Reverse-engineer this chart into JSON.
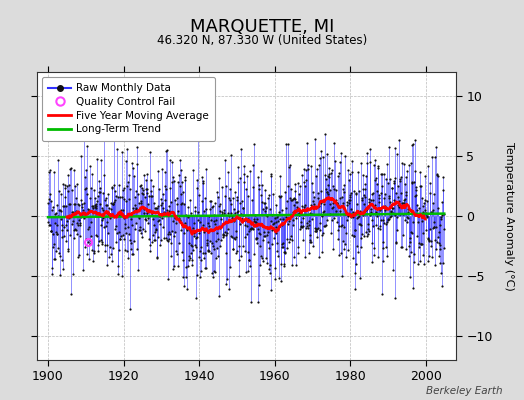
{
  "title": "MARQUETTE, MI",
  "subtitle": "46.320 N, 87.330 W (United States)",
  "ylabel": "Temperature Anomaly (°C)",
  "credit": "Berkeley Earth",
  "xlim": [
    1897,
    2008
  ],
  "ylim": [
    -12,
    12
  ],
  "yticks": [
    -10,
    -5,
    0,
    5,
    10
  ],
  "xticks": [
    1900,
    1920,
    1940,
    1960,
    1980,
    2000
  ],
  "start_year": 1900,
  "end_year": 2005,
  "bg_color": "#dcdcdc",
  "plot_bg_color": "#ffffff",
  "raw_line_color": "#3333ff",
  "raw_dot_color": "#111111",
  "moving_avg_color": "#ff0000",
  "trend_color": "#00bb00",
  "qc_fail_color": "#ff44ff",
  "seed": 42,
  "noise_std": 2.5
}
